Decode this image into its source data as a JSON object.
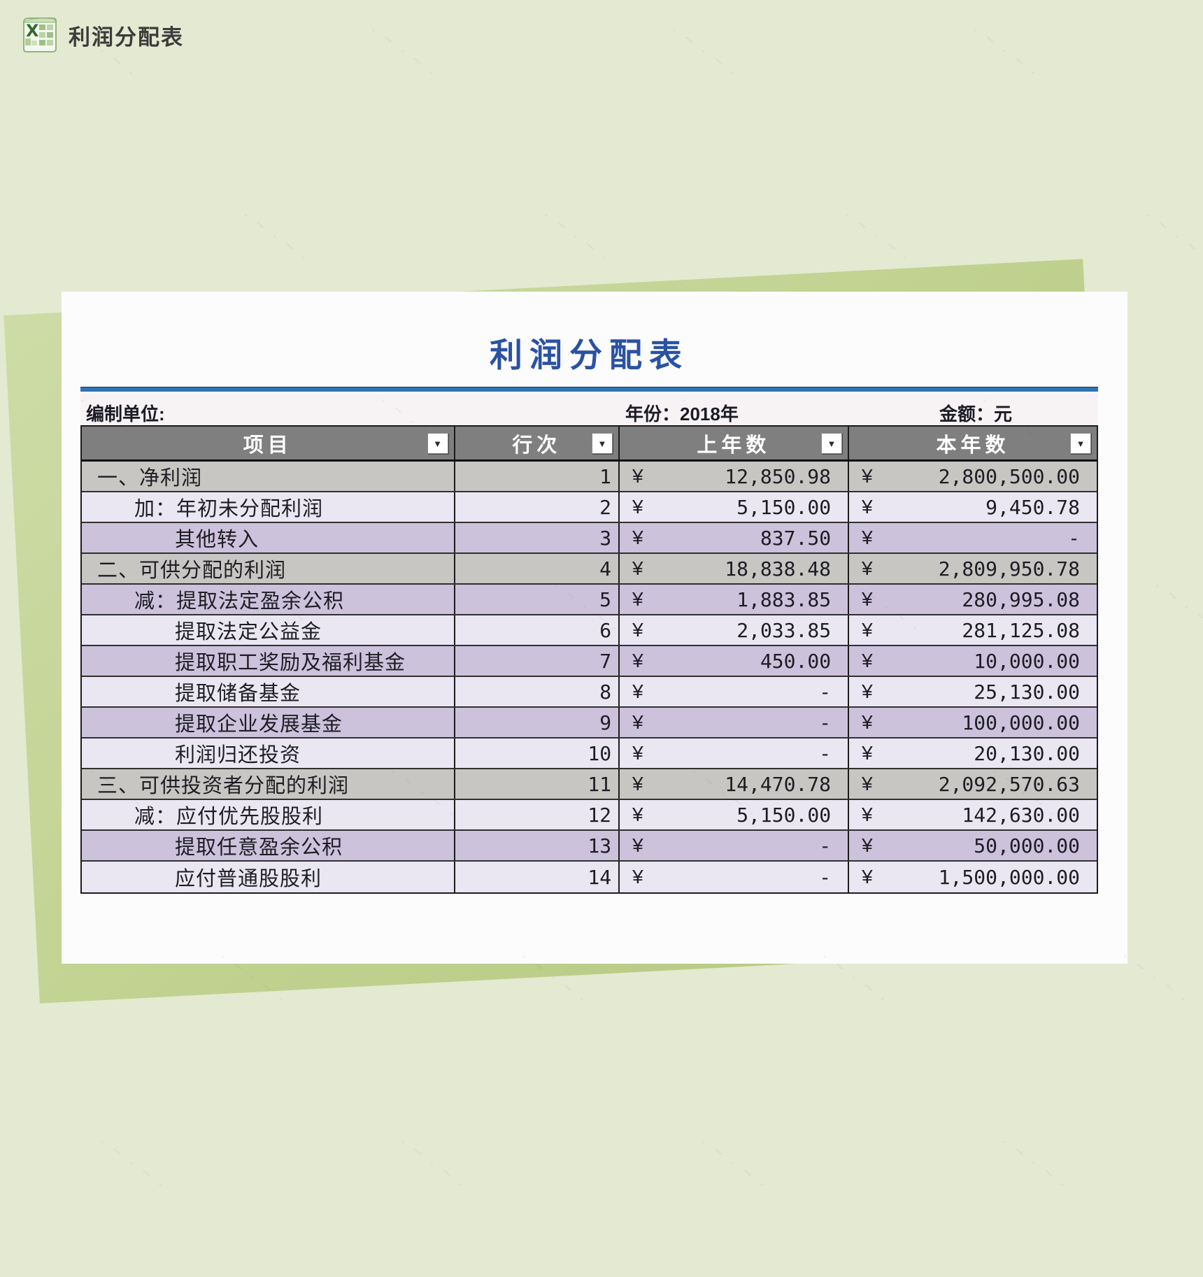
{
  "header": {
    "app_icon": "excel-icon",
    "title": "利润分配表"
  },
  "document": {
    "title": "利润分配表",
    "meta": {
      "prepared_by": "编制单位:",
      "year": "年份：2018年",
      "unit": "金额：元"
    },
    "table": {
      "currency_symbol": "¥",
      "empty_value": "-",
      "columns": [
        {
          "key": "item",
          "label": "项目"
        },
        {
          "key": "line",
          "label": "行次"
        },
        {
          "key": "prev_year",
          "label": "上年数"
        },
        {
          "key": "current_year",
          "label": "本年数"
        }
      ],
      "rows": [
        {
          "item": "一、净利润",
          "indent": 0,
          "line": "1",
          "prev": "12,850.98",
          "curr": "2,800,500.00",
          "style": "section"
        },
        {
          "item": "加：年初未分配利润",
          "indent": 1,
          "line": "2",
          "prev": "5,150.00",
          "curr": "9,450.78",
          "style": "light"
        },
        {
          "item": "其他转入",
          "indent": 2,
          "line": "3",
          "prev": "837.50",
          "curr": "-",
          "style": "purple"
        },
        {
          "item": "二、可供分配的利润",
          "indent": 0,
          "line": "4",
          "prev": "18,838.48",
          "curr": "2,809,950.78",
          "style": "section"
        },
        {
          "item": "减：提取法定盈余公积",
          "indent": 1,
          "line": "5",
          "prev": "1,883.85",
          "curr": "280,995.08",
          "style": "purple"
        },
        {
          "item": "提取法定公益金",
          "indent": 2,
          "line": "6",
          "prev": "2,033.85",
          "curr": "281,125.08",
          "style": "light"
        },
        {
          "item": "提取职工奖励及福利基金",
          "indent": 2,
          "line": "7",
          "prev": "450.00",
          "curr": "10,000.00",
          "style": "purple"
        },
        {
          "item": "提取储备基金",
          "indent": 2,
          "line": "8",
          "prev": "-",
          "curr": "25,130.00",
          "style": "light"
        },
        {
          "item": "提取企业发展基金",
          "indent": 2,
          "line": "9",
          "prev": "-",
          "curr": "100,000.00",
          "style": "purple"
        },
        {
          "item": "利润归还投资",
          "indent": 2,
          "line": "10",
          "prev": "-",
          "curr": "20,130.00",
          "style": "light"
        },
        {
          "item": "三、可供投资者分配的利润",
          "indent": 0,
          "line": "11",
          "prev": "14,470.78",
          "curr": "2,092,570.63",
          "style": "section"
        },
        {
          "item": "减：应付优先股股利",
          "indent": 1,
          "line": "12",
          "prev": "5,150.00",
          "curr": "142,630.00",
          "style": "light"
        },
        {
          "item": "提取任意盈余公积",
          "indent": 2,
          "line": "13",
          "prev": "-",
          "curr": "50,000.00",
          "style": "purple"
        },
        {
          "item": "应付普通股股利",
          "indent": 2,
          "line": "14",
          "prev": "-",
          "curr": "1,500,000.00",
          "style": "light"
        }
      ]
    }
  },
  "watermark": {
    "text": "· ~ · ~ ·"
  },
  "colors": {
    "page_background": "#e4e9d1",
    "accent_band_green": "#c2d392",
    "sheet_white": "#fcfcfd",
    "title_blue": "#2a52a2",
    "rule_blue": "#2e74b5",
    "meta_strip_pink": "#f7f2f3",
    "header_row_gray": "#7f7f7f",
    "section_row_gray": "#c7c6c3",
    "purple_row": "#cdc2dc",
    "light_row": "#eae7f3",
    "excel_icon_green": "#3f7d3a"
  }
}
